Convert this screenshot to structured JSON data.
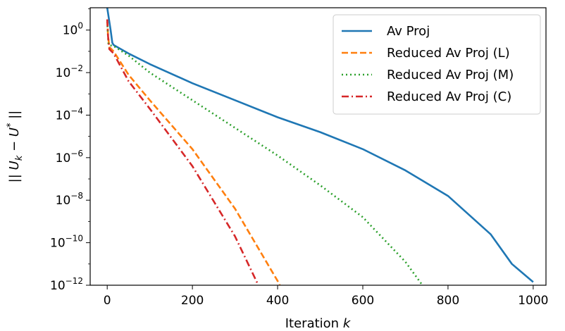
{
  "chart_data": {
    "type": "line",
    "xlabel": "Iteration k",
    "ylabel": "|| U_k − U^* ||",
    "xlim": [
      -40,
      1030
    ],
    "ylim_log10": [
      -12,
      1.05
    ],
    "y_scale": "log",
    "x_ticks": [
      0,
      200,
      400,
      600,
      800,
      1000
    ],
    "y_ticks_exp": [
      0,
      -2,
      -4,
      -6,
      -8,
      -10,
      -12
    ],
    "legend_position": "top-right",
    "series": [
      {
        "name": "Av Proj",
        "color": "#1f77b4",
        "dash": "solid",
        "points": [
          [
            0,
            1.05
          ],
          [
            8,
            0.0
          ],
          [
            12,
            -0.6
          ],
          [
            15,
            -0.7
          ],
          [
            50,
            -1.1
          ],
          [
            100,
            -1.6
          ],
          [
            200,
            -2.5
          ],
          [
            300,
            -3.3
          ],
          [
            400,
            -4.1
          ],
          [
            500,
            -4.8
          ],
          [
            600,
            -5.6
          ],
          [
            700,
            -6.6
          ],
          [
            800,
            -7.8
          ],
          [
            900,
            -9.6
          ],
          [
            950,
            -11.0
          ],
          [
            1000,
            -11.85
          ]
        ]
      },
      {
        "name": "Reduced Av Proj (L)",
        "color": "#ff7f0e",
        "dash": "dashed",
        "points": [
          [
            0,
            0.5
          ],
          [
            2,
            -0.3
          ],
          [
            5,
            -0.8
          ],
          [
            15,
            -1.0
          ],
          [
            50,
            -2.1
          ],
          [
            100,
            -3.3
          ],
          [
            200,
            -5.6
          ],
          [
            300,
            -8.4
          ],
          [
            400,
            -11.8
          ],
          [
            405,
            -12.0
          ]
        ]
      },
      {
        "name": "Reduced Av Proj (M)",
        "color": "#2ca02c",
        "dash": "dotted",
        "points": [
          [
            0,
            0.4
          ],
          [
            3,
            -0.7
          ],
          [
            15,
            -0.75
          ],
          [
            50,
            -1.2
          ],
          [
            100,
            -2.0
          ],
          [
            200,
            -3.3
          ],
          [
            300,
            -4.6
          ],
          [
            400,
            -5.9
          ],
          [
            500,
            -7.3
          ],
          [
            600,
            -8.8
          ],
          [
            700,
            -10.9
          ],
          [
            740,
            -12.0
          ]
        ]
      },
      {
        "name": "Reduced Av Proj (C)",
        "color": "#d62728",
        "dash": "dashdot",
        "points": [
          [
            0,
            0.5
          ],
          [
            2,
            -0.3
          ],
          [
            5,
            -0.9
          ],
          [
            15,
            -1.1
          ],
          [
            50,
            -2.4
          ],
          [
            100,
            -3.7
          ],
          [
            200,
            -6.4
          ],
          [
            300,
            -9.7
          ],
          [
            350,
            -11.8
          ],
          [
            355,
            -12.0
          ]
        ]
      }
    ]
  }
}
